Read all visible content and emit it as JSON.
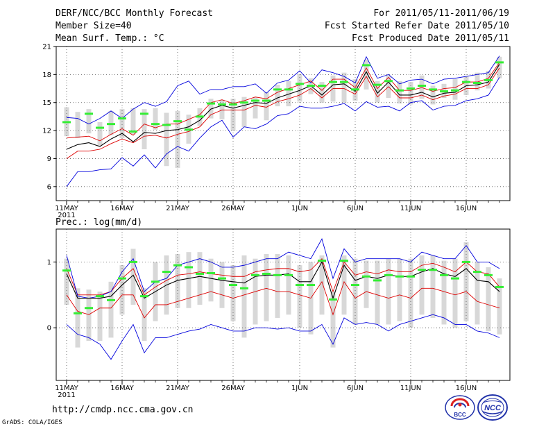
{
  "header": {
    "title": "DERF/NCC/BCC Monthly Forecast",
    "member": "Member Size=40",
    "variable": "Mean Surf. Temp.: °C",
    "period": "For 2011/05/11-2011/06/19",
    "start": "Fcst Started Refer Date 2011/05/10",
    "produced": "Fcst Produced Date 2011/05/11"
  },
  "prec_label": "Prec.: log(mm/d)",
  "url": "http://cmdp.ncc.cma.gov.cn",
  "grads": "GrADS: COLA/IGES",
  "logos": {
    "bcc": "BCC",
    "ncc": "NCC"
  },
  "colors": {
    "ensemble_mean": "#000000",
    "spread": "#dd0000",
    "extremes": "#0000dd",
    "observed": "#33ee33",
    "box": "#d8d8d8"
  },
  "chart_data": [
    {
      "type": "line",
      "title": "Mean Surf. Temp.: °C",
      "x_tick_labels": [
        "11MAY",
        "16MAY",
        "21MAY",
        "26MAY",
        "1JUN",
        "6JUN",
        "11JUN",
        "16JUN"
      ],
      "x_tick_day_index": [
        0,
        5,
        10,
        15,
        21,
        26,
        31,
        36
      ],
      "year_label": "2011",
      "ylim": [
        4.5,
        21
      ],
      "yticks": [
        6,
        9,
        12,
        15,
        18,
        21
      ],
      "series": [
        {
          "name": "max",
          "color": "#0000dd",
          "values": [
            6,
            7.6,
            7.6,
            7.8,
            7.9,
            9.1,
            8.2,
            9.4,
            8,
            9.5,
            10.3,
            9.8,
            11.2,
            12.4,
            13.1,
            11.3,
            12.4,
            12.2,
            12.7,
            13.6,
            13.8,
            14.6,
            14.4,
            14.4,
            14.6,
            14.9,
            14.1,
            15.1,
            14.5,
            14.6,
            14.1,
            15,
            15.2,
            14.2,
            14.6,
            14.7,
            15.2,
            15.4,
            15.8,
            17.7
          ]
        },
        {
          "name": "lower",
          "color": "#dd0000",
          "values": [
            9,
            9.8,
            9.8,
            10,
            10.6,
            11.1,
            10.7,
            11.4,
            11.5,
            11.2,
            11.6,
            11.9,
            12.4,
            13.7,
            14.2,
            14.2,
            14.2,
            14.7,
            14.5,
            15.1,
            15.4,
            15.8,
            16.5,
            15.5,
            16.5,
            16.5,
            15.9,
            17.8,
            15.6,
            16.7,
            15.5,
            15.5,
            15.8,
            15.3,
            15.7,
            15.9,
            16.5,
            16.5,
            16.9,
            18.7
          ]
        },
        {
          "name": "mean",
          "color": "#000000",
          "values": [
            10,
            10.5,
            10.7,
            10.3,
            11.1,
            11.7,
            10.8,
            11.8,
            11.7,
            12,
            12.1,
            12.4,
            13.1,
            14.3,
            14.7,
            14.4,
            14.7,
            15,
            14.9,
            15.5,
            15.9,
            16.3,
            16.8,
            15.8,
            16.9,
            17,
            16.2,
            18.3,
            16,
            17.2,
            15.8,
            15.8,
            16.1,
            15.6,
            16,
            16.1,
            16.8,
            16.9,
            17.2,
            19.1
          ]
        },
        {
          "name": "upper",
          "color": "#dd0000",
          "values": [
            11.2,
            11.3,
            11.4,
            10.9,
            11.6,
            12.2,
            11.5,
            12.7,
            12.3,
            12.7,
            12.7,
            13.2,
            13.7,
            15,
            15.3,
            14.9,
            15.2,
            15.6,
            15.4,
            16.1,
            16.5,
            16.9,
            17.3,
            16.3,
            17.5,
            17.5,
            16.6,
            18.7,
            16.5,
            17.7,
            16.3,
            16.3,
            16.6,
            16.2,
            16.5,
            16.6,
            17.2,
            17.2,
            17.6,
            19.3
          ]
        },
        {
          "name": "min",
          "color": "#0000dd",
          "values": [
            13.4,
            13.3,
            12.7,
            13.3,
            14.1,
            13.3,
            14.3,
            15,
            14.6,
            15.1,
            16.8,
            17.3,
            15.9,
            16.4,
            16.4,
            16.7,
            16.7,
            17,
            16,
            17.1,
            17.4,
            18.4,
            17.1,
            18.5,
            18.2,
            17.8,
            17.1,
            19.9,
            17.6,
            18,
            17,
            17.4,
            17.5,
            17,
            17.5,
            17.6,
            17.8,
            18,
            18.2,
            20
          ]
        },
        {
          "name": "box_low",
          "values": [
            11.4,
            11.2,
            11.7,
            10.4,
            11.5,
            11.2,
            11.6,
            10,
            12.1,
            8.2,
            8,
            10.6,
            12.5,
            13.3,
            13.2,
            12,
            12.4,
            13.3,
            13.1,
            14.6,
            14.6,
            15.1,
            15.9,
            15,
            15.1,
            15,
            15.2,
            16.4,
            15,
            15.5,
            14.9,
            14.8,
            15.4,
            14.8,
            15.5,
            15.3,
            15.8,
            16.3,
            16.5,
            17.6
          ]
        },
        {
          "name": "box_high",
          "values": [
            14.5,
            14,
            14.3,
            12.9,
            14.1,
            14.3,
            14.4,
            14.3,
            14.4,
            13.9,
            14.1,
            13.7,
            14.4,
            15.4,
            15.3,
            15.4,
            15.6,
            15.6,
            16.1,
            16.9,
            17.3,
            18,
            17.6,
            17.2,
            17.9,
            18.2,
            17.5,
            19.6,
            17.3,
            17.9,
            17.3,
            17.2,
            17.9,
            16.8,
            17,
            17.5,
            17.8,
            18.2,
            18.4,
            19.9
          ]
        },
        {
          "name": "observed",
          "color": "#33ee33",
          "values": [
            12.9,
            null,
            13.8,
            12.3,
            12.7,
            13.3,
            11.9,
            13.8,
            12.7,
            12.6,
            13,
            12.1,
            13.5,
            14.9,
            14.8,
            14.8,
            15,
            15.2,
            15.2,
            16.4,
            16.4,
            17,
            16.8,
            16.8,
            17.2,
            17.2,
            16.4,
            19,
            16.9,
            17.3,
            16.3,
            16.5,
            16.8,
            16.4,
            16.2,
            16.3,
            17.2,
            17.1,
            17.4,
            19.3
          ]
        }
      ]
    },
    {
      "type": "line",
      "title": "Prec.: log(mm/d)",
      "x_tick_labels": [
        "11MAY",
        "16MAY",
        "21MAY",
        "26MAY",
        "1JUN",
        "6JUN",
        "11JUN",
        "16JUN"
      ],
      "x_tick_day_index": [
        0,
        5,
        10,
        15,
        21,
        26,
        31,
        36
      ],
      "year_label": "2011",
      "ylim": [
        -0.8,
        1.5
      ],
      "yticks": [
        0,
        1
      ],
      "series": [
        {
          "name": "min",
          "color": "#0000dd",
          "values": [
            0.05,
            -0.1,
            -0.15,
            -0.25,
            -0.48,
            -0.2,
            0.05,
            -0.38,
            -0.15,
            -0.15,
            -0.1,
            -0.05,
            -0.02,
            0.05,
            0,
            -0.05,
            -0.05,
            0,
            0,
            -0.02,
            0,
            -0.05,
            -0.05,
            0.05,
            -0.25,
            0.15,
            0.05,
            0.08,
            0.05,
            -0.05,
            0.05,
            0.1,
            0.15,
            0.2,
            0.15,
            0.05,
            0.05,
            -0.05,
            -0.08,
            -0.15
          ]
        },
        {
          "name": "lower",
          "color": "#dd0000",
          "values": [
            0.5,
            0.25,
            0.2,
            0.3,
            0.3,
            0.5,
            0.5,
            0.15,
            0.35,
            0.35,
            0.4,
            0.45,
            0.5,
            0.55,
            0.5,
            0.45,
            0.5,
            0.55,
            0.6,
            0.55,
            0.55,
            0.5,
            0.45,
            0.7,
            0.2,
            0.7,
            0.45,
            0.55,
            0.5,
            0.45,
            0.5,
            0.45,
            0.6,
            0.6,
            0.55,
            0.5,
            0.55,
            0.4,
            0.35,
            0.3
          ]
        },
        {
          "name": "mean",
          "color": "#000000",
          "values": [
            0.82,
            0.45,
            0.45,
            0.45,
            0.48,
            0.65,
            0.8,
            0.45,
            0.55,
            0.65,
            0.72,
            0.75,
            0.78,
            0.75,
            0.72,
            0.7,
            0.68,
            0.78,
            0.8,
            0.8,
            0.82,
            0.7,
            0.7,
            1,
            0.45,
            0.95,
            0.72,
            0.78,
            0.75,
            0.8,
            0.78,
            0.78,
            0.85,
            0.9,
            0.82,
            0.78,
            0.9,
            0.72,
            0.7,
            0.55
          ]
        },
        {
          "name": "upper",
          "color": "#dd0000",
          "values": [
            0.9,
            0.5,
            0.5,
            0.5,
            0.55,
            0.75,
            0.9,
            0.5,
            0.62,
            0.72,
            0.8,
            0.82,
            0.85,
            0.82,
            0.8,
            0.78,
            0.78,
            0.85,
            0.88,
            0.9,
            0.9,
            0.85,
            0.88,
            1.05,
            0.55,
            1,
            0.8,
            0.85,
            0.82,
            0.88,
            0.85,
            0.85,
            0.95,
            0.98,
            0.92,
            0.85,
            1,
            0.85,
            0.82,
            0.62
          ]
        },
        {
          "name": "max",
          "color": "#0000dd",
          "values": [
            1.1,
            0.48,
            0.45,
            0.48,
            0.55,
            0.85,
            1.05,
            0.55,
            0.7,
            0.75,
            0.95,
            1,
            1.05,
            1,
            0.92,
            0.92,
            0.95,
            1,
            1.05,
            1.05,
            1.15,
            1.1,
            1.05,
            1.35,
            0.75,
            1.2,
            1,
            1.05,
            1.05,
            1.05,
            1.05,
            1,
            1.15,
            1.1,
            1.05,
            1.05,
            1.25,
            1,
            1,
            0.9
          ]
        },
        {
          "name": "box_low",
          "values": [
            0.35,
            -0.3,
            -0.2,
            -0.2,
            -0.15,
            0.2,
            0.35,
            -0.2,
            0.1,
            0.2,
            0.3,
            0.3,
            0.35,
            0.4,
            0.3,
            0.1,
            -0.15,
            0.05,
            0.1,
            0.15,
            0.2,
            0,
            -0.1,
            0.2,
            -0.3,
            0.2,
            0.05,
            0.3,
            0.05,
            0.05,
            0.1,
            0,
            0.2,
            0.15,
            0.05,
            0,
            0.1,
            0.05,
            -0.05,
            -0.1
          ]
        },
        {
          "name": "box_high",
          "values": [
            1.05,
            0.6,
            0.58,
            0.55,
            0.7,
            0.95,
            1.2,
            0.6,
            1,
            1.1,
            1.12,
            1.15,
            1.15,
            1.05,
            1,
            0.95,
            1.1,
            1.05,
            1.12,
            1.12,
            1.1,
            0.95,
            1,
            1.1,
            0.55,
            1.1,
            1.05,
            1.02,
            1.02,
            1.05,
            1.05,
            1.05,
            1.1,
            1.1,
            1.02,
            1.05,
            1.3,
            1,
            0.92,
            0.75
          ]
        },
        {
          "name": "observed",
          "color": "#33ee33",
          "values": [
            0.87,
            0.22,
            0.3,
            0.48,
            0.42,
            0.75,
            1,
            0.48,
            0.7,
            0.85,
            0.95,
            0.92,
            0.82,
            0.83,
            0.75,
            0.65,
            0.6,
            0.8,
            0.82,
            0.8,
            0.8,
            0.65,
            0.65,
            1.02,
            0.43,
            1.02,
            0.65,
            0.78,
            0.72,
            0.8,
            0.78,
            0.78,
            0.88,
            0.88,
            0.8,
            0.75,
            1,
            0.85,
            0.8,
            0.62
          ]
        }
      ]
    }
  ]
}
